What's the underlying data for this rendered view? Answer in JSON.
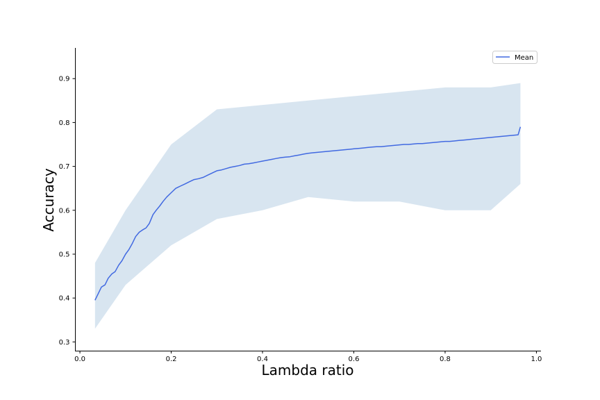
{
  "colors": {
    "mean_line": "#4169e1",
    "band_fill": "#b8cfe3",
    "axis": "#000000",
    "legend_border": "#cccccc"
  },
  "chart_data": {
    "type": "line",
    "title": "",
    "xlabel": "Lambda ratio",
    "ylabel": "Accuracy",
    "xlim": [
      -0.01,
      1.01
    ],
    "ylim": [
      0.28,
      0.97
    ],
    "xticks": [
      0.0,
      0.2,
      0.4,
      0.6,
      0.8,
      1.0
    ],
    "xtick_labels": [
      "0.0",
      "0.2",
      "0.4",
      "0.6",
      "0.8",
      "1.0"
    ],
    "yticks": [
      0.3,
      0.4,
      0.5,
      0.6,
      0.7,
      0.8,
      0.9
    ],
    "ytick_labels": [
      "0.3",
      "0.4",
      "0.5",
      "0.6",
      "0.7",
      "0.8",
      "0.9"
    ],
    "grid": false,
    "legend": {
      "position": "top-right",
      "entries": [
        "Mean"
      ]
    },
    "series": [
      {
        "name": "Mean",
        "kind": "line",
        "x": [
          0.033,
          0.04,
          0.047,
          0.055,
          0.062,
          0.07,
          0.077,
          0.085,
          0.092,
          0.1,
          0.107,
          0.115,
          0.122,
          0.13,
          0.137,
          0.145,
          0.152,
          0.16,
          0.167,
          0.175,
          0.182,
          0.19,
          0.2,
          0.21,
          0.22,
          0.23,
          0.24,
          0.25,
          0.26,
          0.27,
          0.28,
          0.29,
          0.3,
          0.31,
          0.32,
          0.33,
          0.34,
          0.35,
          0.36,
          0.37,
          0.38,
          0.39,
          0.4,
          0.41,
          0.42,
          0.43,
          0.44,
          0.45,
          0.46,
          0.47,
          0.48,
          0.49,
          0.5,
          0.51,
          0.52,
          0.53,
          0.54,
          0.55,
          0.56,
          0.57,
          0.58,
          0.59,
          0.6,
          0.61,
          0.62,
          0.63,
          0.64,
          0.65,
          0.66,
          0.67,
          0.68,
          0.69,
          0.7,
          0.71,
          0.72,
          0.73,
          0.74,
          0.75,
          0.76,
          0.77,
          0.78,
          0.79,
          0.8,
          0.81,
          0.82,
          0.83,
          0.84,
          0.85,
          0.86,
          0.87,
          0.88,
          0.89,
          0.9,
          0.91,
          0.92,
          0.93,
          0.94,
          0.95,
          0.96,
          0.965
        ],
        "y": [
          0.395,
          0.41,
          0.425,
          0.43,
          0.445,
          0.455,
          0.46,
          0.475,
          0.485,
          0.5,
          0.51,
          0.525,
          0.54,
          0.55,
          0.555,
          0.56,
          0.57,
          0.59,
          0.6,
          0.61,
          0.62,
          0.63,
          0.64,
          0.65,
          0.655,
          0.66,
          0.665,
          0.67,
          0.672,
          0.675,
          0.68,
          0.685,
          0.69,
          0.692,
          0.695,
          0.698,
          0.7,
          0.702,
          0.705,
          0.706,
          0.708,
          0.71,
          0.712,
          0.714,
          0.716,
          0.718,
          0.72,
          0.721,
          0.722,
          0.724,
          0.726,
          0.728,
          0.73,
          0.731,
          0.732,
          0.733,
          0.734,
          0.735,
          0.736,
          0.737,
          0.738,
          0.739,
          0.74,
          0.741,
          0.742,
          0.743,
          0.744,
          0.745,
          0.745,
          0.746,
          0.747,
          0.748,
          0.749,
          0.75,
          0.75,
          0.751,
          0.752,
          0.752,
          0.753,
          0.754,
          0.755,
          0.756,
          0.757,
          0.757,
          0.758,
          0.759,
          0.76,
          0.761,
          0.762,
          0.763,
          0.764,
          0.765,
          0.766,
          0.767,
          0.768,
          0.769,
          0.77,
          0.771,
          0.772,
          0.79
        ]
      },
      {
        "name": "",
        "kind": "band",
        "x": [
          0.033,
          0.1,
          0.2,
          0.3,
          0.4,
          0.5,
          0.6,
          0.7,
          0.8,
          0.9,
          0.965
        ],
        "lower": [
          0.33,
          0.43,
          0.52,
          0.58,
          0.6,
          0.63,
          0.62,
          0.62,
          0.6,
          0.6,
          0.66
        ],
        "upper": [
          0.48,
          0.6,
          0.75,
          0.83,
          0.84,
          0.85,
          0.86,
          0.87,
          0.88,
          0.88,
          0.89
        ]
      }
    ]
  }
}
